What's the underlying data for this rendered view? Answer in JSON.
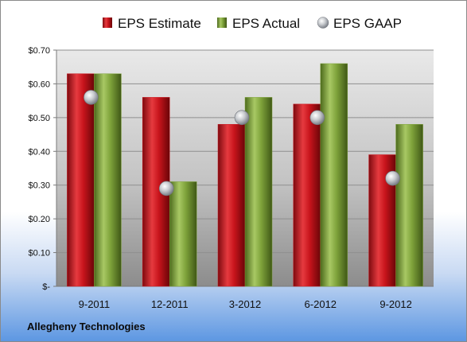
{
  "company": "Allegheny Technologies",
  "colors": {
    "estimate": "#c8141c",
    "actual": "#7ea23a",
    "gaap": "#b8bcc2"
  },
  "chart_data": {
    "type": "bar",
    "categories": [
      "9-2011",
      "12-2011",
      "3-2012",
      "6-2012",
      "9-2012"
    ],
    "series": [
      {
        "name": "EPS Estimate",
        "type": "bar",
        "values": [
          0.63,
          0.56,
          0.48,
          0.54,
          0.39
        ]
      },
      {
        "name": "EPS Actual",
        "type": "bar",
        "values": [
          0.63,
          0.31,
          0.56,
          0.66,
          0.48
        ]
      },
      {
        "name": "EPS GAAP",
        "type": "scatter",
        "values": [
          0.56,
          0.29,
          0.5,
          0.5,
          0.32
        ]
      }
    ],
    "ylim": [
      0,
      0.7
    ],
    "yticks": [
      0,
      0.1,
      0.2,
      0.3,
      0.4,
      0.5,
      0.6,
      0.7
    ],
    "ytick_labels": [
      "$-",
      "$0.10",
      "$0.20",
      "$0.30",
      "$0.40",
      "$0.50",
      "$0.60",
      "$0.70"
    ],
    "grid": true,
    "legend": "top"
  }
}
